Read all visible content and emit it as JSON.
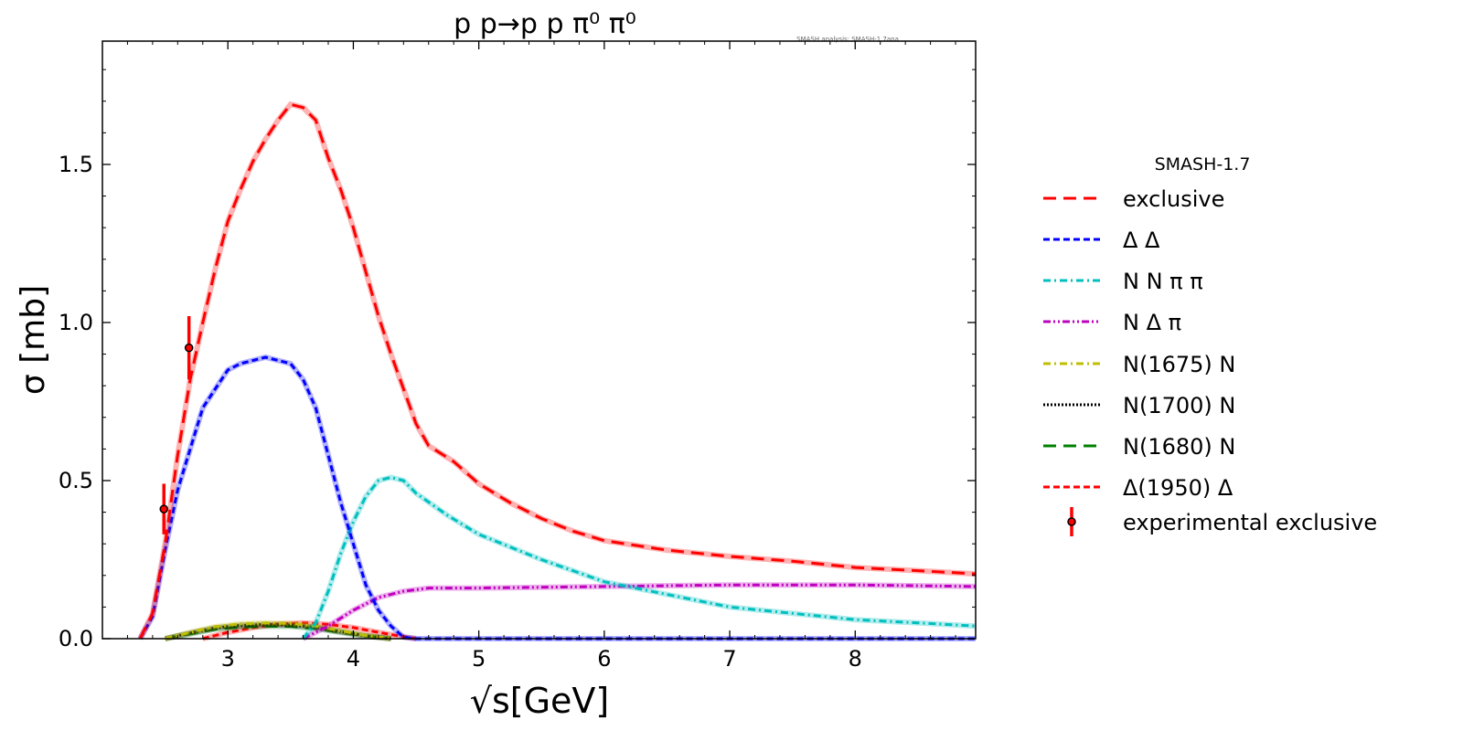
{
  "chart_data": {
    "type": "line",
    "title": "p p→p p π⁰ π⁰",
    "annotation": "SMASH analysis: SMASH-1.7ana",
    "xlabel": "√s[GeV]",
    "ylabel": "σ [mb]",
    "xlim": [
      2.0,
      8.96
    ],
    "ylim": [
      0,
      1.89
    ],
    "xticks": [
      3,
      4,
      5,
      6,
      7,
      8
    ],
    "xtick_labels": [
      "3",
      "4",
      "5",
      "6",
      "7",
      "8"
    ],
    "yticks": [
      0,
      0.5,
      1.0,
      1.5
    ],
    "ytick_labels": [
      "0.0",
      "0.5",
      "1.0",
      "1.5"
    ],
    "grid": false,
    "legend_title": "SMASH-1.7",
    "legend_placement": "outside-right",
    "series": [
      {
        "name": "exclusive",
        "color": "#ff0000",
        "dash": "dashed",
        "x": [
          2.3,
          2.4,
          2.5,
          2.6,
          2.7,
          2.8,
          2.9,
          3.0,
          3.1,
          3.2,
          3.3,
          3.4,
          3.5,
          3.6,
          3.7,
          3.8,
          3.9,
          4.0,
          4.1,
          4.2,
          4.3,
          4.4,
          4.5,
          4.6,
          4.8,
          5.0,
          5.25,
          5.5,
          5.75,
          6.0,
          6.5,
          7.0,
          7.5,
          8.0,
          8.5,
          8.96
        ],
        "y": [
          0,
          0.08,
          0.3,
          0.58,
          0.82,
          1.0,
          1.17,
          1.32,
          1.42,
          1.51,
          1.58,
          1.64,
          1.69,
          1.68,
          1.64,
          1.52,
          1.42,
          1.3,
          1.16,
          1.02,
          0.9,
          0.79,
          0.68,
          0.61,
          0.56,
          0.49,
          0.43,
          0.38,
          0.34,
          0.31,
          0.28,
          0.26,
          0.245,
          0.225,
          0.215,
          0.205
        ]
      },
      {
        "name": "Δ Δ",
        "color": "#0000ff",
        "dash": "dense",
        "x": [
          2.3,
          2.4,
          2.5,
          2.6,
          2.7,
          2.8,
          2.9,
          3.0,
          3.1,
          3.2,
          3.3,
          3.4,
          3.5,
          3.6,
          3.7,
          3.8,
          3.9,
          4.0,
          4.1,
          4.2,
          4.3,
          4.4,
          4.5,
          8.96
        ],
        "y": [
          0,
          0.07,
          0.28,
          0.47,
          0.6,
          0.73,
          0.79,
          0.85,
          0.87,
          0.88,
          0.89,
          0.88,
          0.87,
          0.82,
          0.73,
          0.58,
          0.43,
          0.3,
          0.17,
          0.09,
          0.04,
          0.005,
          0,
          0
        ]
      },
      {
        "name": "N N π π",
        "color": "#00bfbf",
        "dash": "dashdot",
        "x": [
          3.6,
          3.7,
          3.8,
          3.9,
          4.0,
          4.1,
          4.2,
          4.3,
          4.4,
          4.5,
          4.75,
          5.0,
          5.5,
          6.0,
          6.5,
          7.0,
          7.5,
          8.0,
          8.5,
          8.96
        ],
        "y": [
          0,
          0.05,
          0.15,
          0.27,
          0.37,
          0.45,
          0.5,
          0.51,
          0.5,
          0.46,
          0.39,
          0.33,
          0.25,
          0.18,
          0.14,
          0.1,
          0.08,
          0.06,
          0.05,
          0.04
        ]
      },
      {
        "name": "N Δ π",
        "color": "#bf00bf",
        "dash": "dashdotdot",
        "x": [
          3.6,
          3.8,
          4.0,
          4.2,
          4.4,
          4.6,
          5.0,
          6.0,
          7.0,
          8.0,
          8.96
        ],
        "y": [
          0,
          0.04,
          0.09,
          0.13,
          0.15,
          0.16,
          0.16,
          0.165,
          0.17,
          0.17,
          0.165
        ]
      },
      {
        "name": "N(1675) N",
        "color": "#bfbf00",
        "dash": "dashdot",
        "x": [
          2.5,
          2.7,
          2.9,
          3.1,
          3.3,
          3.5,
          3.7,
          3.9,
          4.1,
          4.3
        ],
        "y": [
          0,
          0.02,
          0.038,
          0.047,
          0.05,
          0.048,
          0.04,
          0.025,
          0.01,
          0
        ]
      },
      {
        "name": "N(1700) N",
        "color": "#000000",
        "dash": "dotted",
        "x": [
          2.5,
          2.7,
          2.9,
          3.1,
          3.3,
          3.5,
          3.7,
          3.9,
          4.1,
          4.3
        ],
        "y": [
          0,
          0.018,
          0.034,
          0.042,
          0.045,
          0.043,
          0.036,
          0.022,
          0.009,
          0
        ]
      },
      {
        "name": "N(1680) N",
        "color": "#008000",
        "dash": "dashed",
        "x": [
          2.5,
          2.7,
          2.9,
          3.1,
          3.3,
          3.5,
          3.7,
          3.9,
          4.1,
          4.3
        ],
        "y": [
          0,
          0.015,
          0.03,
          0.037,
          0.04,
          0.039,
          0.032,
          0.02,
          0.008,
          0
        ]
      },
      {
        "name": "Δ(1950) Δ",
        "color": "#ff0000",
        "dash": "dense",
        "x": [
          2.8,
          3.0,
          3.2,
          3.4,
          3.6,
          3.8,
          4.0,
          4.2,
          4.4,
          4.5
        ],
        "y": [
          0,
          0.02,
          0.035,
          0.046,
          0.05,
          0.045,
          0.035,
          0.02,
          0.006,
          0
        ]
      }
    ],
    "experimental": {
      "name": "experimental exclusive",
      "color": "#ff0000",
      "x": [
        2.49,
        2.69
      ],
      "y": [
        0.41,
        0.92
      ],
      "yerr": [
        0.08,
        0.1
      ]
    }
  }
}
